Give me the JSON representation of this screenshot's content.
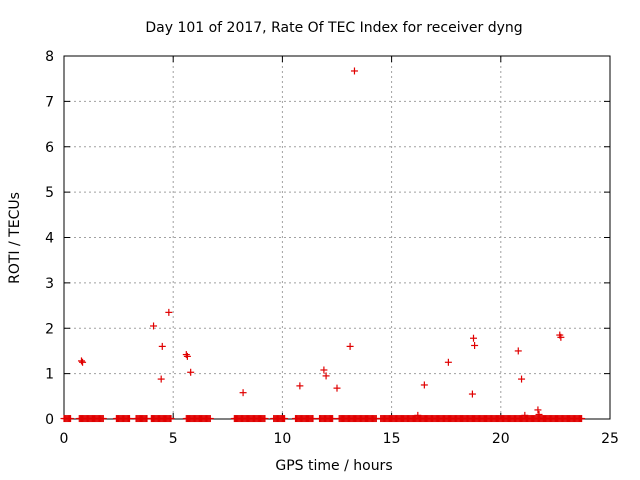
{
  "chart_data": {
    "type": "scatter",
    "title": "Day 101 of 2017, Rate Of TEC Index for receiver dyng",
    "xlabel": "GPS time / hours",
    "ylabel": "ROTI / TECUs",
    "xlim": [
      0,
      25
    ],
    "ylim": [
      0,
      8
    ],
    "xticks": [
      0,
      5,
      10,
      15,
      20,
      25
    ],
    "yticks": [
      0,
      1,
      2,
      3,
      4,
      5,
      6,
      7,
      8
    ],
    "grid": true,
    "marker": "+",
    "color": "#e00000",
    "baseline_segments": [
      [
        0.0,
        0.3
      ],
      [
        0.7,
        1.8
      ],
      [
        2.4,
        3.0
      ],
      [
        3.3,
        3.8
      ],
      [
        4.0,
        4.9
      ],
      [
        5.6,
        6.7
      ],
      [
        7.8,
        9.2
      ],
      [
        9.6,
        10.1
      ],
      [
        10.6,
        11.4
      ],
      [
        11.7,
        12.3
      ],
      [
        12.6,
        14.3
      ],
      [
        14.5,
        23.7
      ]
    ],
    "series": [
      {
        "name": "ROTI",
        "points": [
          [
            0.8,
            1.28
          ],
          [
            0.85,
            1.25
          ],
          [
            4.1,
            2.05
          ],
          [
            4.5,
            1.6
          ],
          [
            4.45,
            0.88
          ],
          [
            4.8,
            2.35
          ],
          [
            5.6,
            1.42
          ],
          [
            5.65,
            1.38
          ],
          [
            5.8,
            1.03
          ],
          [
            8.2,
            0.58
          ],
          [
            10.8,
            0.73
          ],
          [
            11.9,
            1.08
          ],
          [
            12.0,
            0.95
          ],
          [
            12.5,
            0.68
          ],
          [
            13.1,
            1.6
          ],
          [
            13.3,
            7.67
          ],
          [
            16.2,
            0.08
          ],
          [
            16.5,
            0.75
          ],
          [
            17.6,
            1.25
          ],
          [
            18.7,
            0.55
          ],
          [
            18.75,
            1.78
          ],
          [
            18.8,
            1.62
          ],
          [
            20.8,
            1.5
          ],
          [
            20.95,
            0.88
          ],
          [
            21.1,
            0.08
          ],
          [
            21.7,
            0.2
          ],
          [
            21.75,
            0.1
          ],
          [
            22.7,
            1.85
          ],
          [
            22.75,
            1.8
          ]
        ]
      }
    ]
  }
}
